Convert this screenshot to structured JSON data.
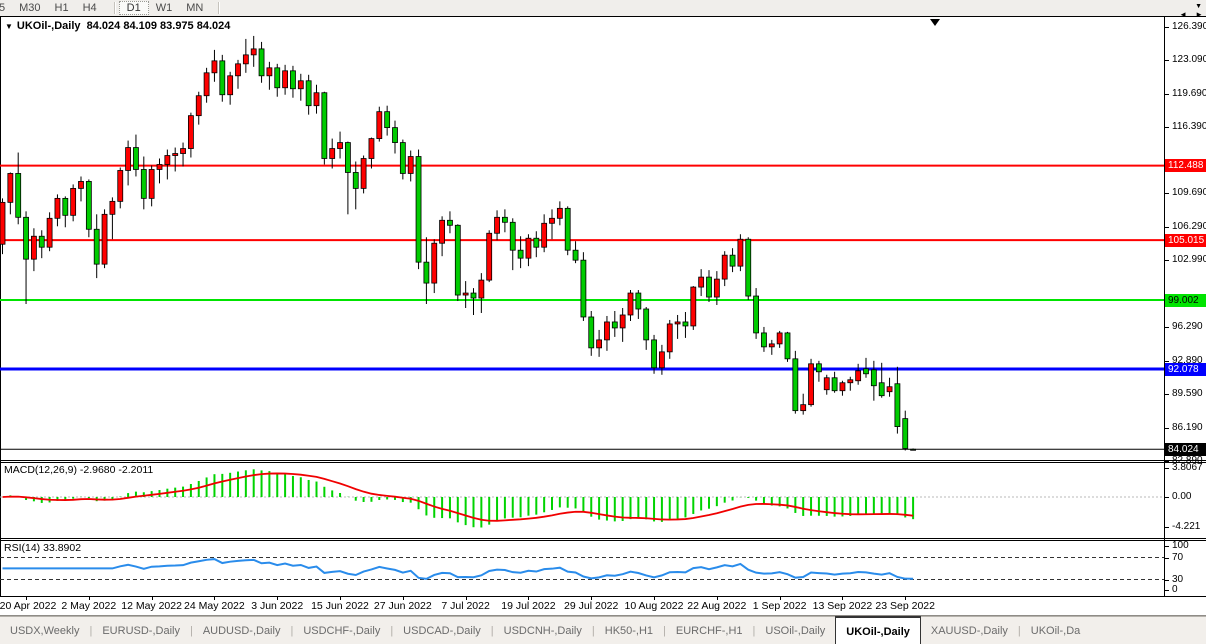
{
  "toolbar": {
    "timeframes": [
      "5",
      "M30",
      "H1",
      "H4",
      "D1",
      "W1",
      "MN"
    ],
    "active": "D1",
    "overflow_icon": "▼"
  },
  "chart": {
    "title": {
      "collapse_icon": "▼",
      "symbol": "UKOil-,Daily",
      "ohlc": "84.024 84.109 83.975 84.024"
    }
  },
  "macd_panel": {
    "label": "MACD(12,26,9)",
    "main_value": "-2.9680",
    "signal_value": "-2.2011",
    "axis": [
      "3.8067",
      "0.00",
      "-4.221"
    ]
  },
  "rsi_panel": {
    "label": "RSI(14)",
    "value": "33.8902",
    "axis": [
      "100",
      "70",
      "30",
      "0"
    ]
  },
  "tabs": {
    "items": [
      "USDX,Weekly",
      "EURUSD-,Daily",
      "AUDUSD-,Daily",
      "USDCHF-,Daily",
      "USDCAD-,Daily",
      "USDCNH-,Daily",
      "HK50-,H1",
      "EURCHF-,H1",
      "USOil-,Daily",
      "UKOil-,Daily",
      "XAUUSD-,Daily",
      "UKOil-,Da"
    ],
    "active": "UKOil-,Daily",
    "scroll_left_icon": "◄",
    "scroll_right_icon": "►"
  },
  "chart_data": {
    "type": "candlestick",
    "symbol": "UKOil-",
    "timeframe": "Daily",
    "title": "UKOil-,Daily",
    "current_ohlc": {
      "open": 84.024,
      "high": 84.109,
      "low": 83.975,
      "close": 84.024
    },
    "colors": {
      "bull_candle": "#fe0000",
      "bear_candle": "#00cc00",
      "wick": "#000000",
      "macd_histogram": "#00d300",
      "macd_signal": "#f00000",
      "rsi_line": "#2a8ceb",
      "level_red": "#ff0000",
      "level_green": "#00e400",
      "level_blue": "#0000ff",
      "price_line": "#000000"
    },
    "y_axis_ticks": [
      126.39,
      123.09,
      119.69,
      116.39,
      109.69,
      106.29,
      102.99,
      96.29,
      92.89,
      89.59,
      86.19,
      82.89
    ],
    "horizontal_levels": [
      {
        "price": 112.488,
        "color": "#ff0000",
        "width": 2,
        "badge_fg": "#ffffff"
      },
      {
        "price": 105.015,
        "color": "#ff0000",
        "width": 2,
        "badge_fg": "#ffffff"
      },
      {
        "price": 99.002,
        "color": "#00e400",
        "width": 2,
        "badge_fg": "#000000"
      },
      {
        "price": 92.078,
        "color": "#0000ff",
        "width": 3,
        "badge_fg": "#ffffff"
      },
      {
        "price": 84.024,
        "color": "#000000",
        "width": 1,
        "badge_fg": "#ffffff"
      }
    ],
    "x_axis_dates": [
      "20 Apr 2022",
      "2 May 2022",
      "12 May 2022",
      "24 May 2022",
      "3 Jun 2022",
      "15 Jun 2022",
      "27 Jun 2022",
      "7 Jul 2022",
      "19 Jul 2022",
      "29 Jul 2022",
      "10 Aug 2022",
      "22 Aug 2022",
      "1 Sep 2022",
      "13 Sep 2022",
      "23 Sep 2022"
    ],
    "candles_ohlc": [
      [
        104.6,
        109.2,
        103.6,
        108.8
      ],
      [
        108.8,
        111.8,
        107.6,
        111.7
      ],
      [
        111.7,
        113.8,
        106.6,
        107.3
      ],
      [
        107.3,
        107.9,
        98.6,
        103.1
      ],
      [
        103.1,
        106.2,
        101.9,
        105.4
      ],
      [
        105.4,
        106.0,
        103.2,
        104.3
      ],
      [
        104.3,
        107.8,
        103.9,
        107.2
      ],
      [
        107.2,
        109.6,
        106.4,
        109.2
      ],
      [
        109.2,
        109.4,
        106.3,
        107.5
      ],
      [
        107.5,
        110.6,
        106.9,
        110.2
      ],
      [
        110.2,
        111.4,
        108.9,
        110.9
      ],
      [
        110.9,
        111.1,
        105.3,
        106.1
      ],
      [
        106.1,
        107.6,
        101.2,
        102.6
      ],
      [
        102.6,
        108.1,
        102.2,
        107.6
      ],
      [
        107.6,
        109.3,
        105.1,
        108.9
      ],
      [
        108.9,
        112.3,
        108.2,
        112.0
      ],
      [
        112.0,
        115.0,
        110.5,
        114.3
      ],
      [
        114.3,
        115.6,
        111.4,
        112.1
      ],
      [
        112.1,
        113.4,
        108.1,
        109.2
      ],
      [
        109.2,
        112.5,
        108.4,
        112.1
      ],
      [
        112.1,
        113.2,
        110.7,
        112.6
      ],
      [
        112.6,
        114.1,
        111.1,
        113.5
      ],
      [
        113.5,
        114.3,
        111.9,
        113.7
      ],
      [
        113.7,
        114.8,
        112.4,
        114.2
      ],
      [
        114.2,
        117.8,
        113.3,
        117.5
      ],
      [
        117.5,
        119.9,
        116.6,
        119.5
      ],
      [
        119.5,
        122.3,
        118.8,
        121.8
      ],
      [
        121.8,
        124.1,
        120.9,
        123.0
      ],
      [
        123.0,
        123.6,
        118.9,
        119.6
      ],
      [
        119.6,
        121.9,
        118.6,
        121.5
      ],
      [
        121.5,
        123.1,
        120.2,
        122.7
      ],
      [
        122.7,
        125.2,
        121.8,
        123.6
      ],
      [
        123.6,
        125.5,
        122.4,
        124.2
      ],
      [
        124.2,
        124.9,
        120.8,
        121.5
      ],
      [
        121.5,
        122.9,
        120.1,
        122.3
      ],
      [
        122.3,
        122.7,
        119.4,
        120.3
      ],
      [
        120.3,
        122.6,
        119.6,
        122.0
      ],
      [
        122.0,
        122.5,
        119.3,
        120.2
      ],
      [
        120.2,
        121.7,
        119.0,
        121.0
      ],
      [
        121.0,
        121.6,
        117.6,
        118.5
      ],
      [
        118.5,
        120.6,
        117.7,
        119.8
      ],
      [
        119.8,
        119.9,
        112.6,
        113.2
      ],
      [
        113.2,
        115.2,
        112.2,
        114.2
      ],
      [
        114.2,
        115.9,
        113.2,
        114.8
      ],
      [
        114.8,
        114.9,
        107.6,
        111.8
      ],
      [
        111.8,
        112.9,
        108.1,
        110.2
      ],
      [
        110.2,
        113.5,
        109.7,
        113.2
      ],
      [
        113.2,
        115.3,
        112.2,
        115.2
      ],
      [
        115.2,
        118.4,
        114.9,
        117.9
      ],
      [
        117.9,
        118.5,
        115.5,
        116.3
      ],
      [
        116.3,
        117.0,
        113.7,
        114.8
      ],
      [
        114.8,
        115.1,
        111.1,
        111.7
      ],
      [
        111.7,
        114.0,
        110.9,
        113.4
      ],
      [
        113.4,
        114.1,
        102.1,
        102.8
      ],
      [
        102.8,
        105.3,
        98.6,
        100.7
      ],
      [
        100.7,
        105.1,
        99.7,
        104.7
      ],
      [
        104.7,
        107.4,
        103.4,
        107.0
      ],
      [
        107.0,
        107.9,
        105.7,
        106.5
      ],
      [
        106.5,
        106.6,
        98.9,
        99.5
      ],
      [
        99.5,
        100.9,
        98.2,
        99.7
      ],
      [
        99.7,
        100.2,
        97.5,
        99.2
      ],
      [
        99.2,
        101.7,
        97.7,
        101.0
      ],
      [
        101.0,
        106.0,
        100.8,
        105.7
      ],
      [
        105.7,
        108.0,
        105.0,
        107.3
      ],
      [
        107.3,
        108.1,
        105.8,
        106.8
      ],
      [
        106.8,
        107.2,
        102.0,
        104.0
      ],
      [
        104.0,
        105.4,
        102.2,
        103.2
      ],
      [
        103.2,
        105.6,
        102.4,
        105.2
      ],
      [
        105.2,
        105.9,
        103.3,
        104.3
      ],
      [
        104.3,
        107.6,
        103.8,
        106.7
      ],
      [
        106.7,
        108.1,
        105.1,
        107.2
      ],
      [
        107.2,
        108.9,
        106.5,
        108.2
      ],
      [
        108.2,
        108.4,
        103.5,
        104.0
      ],
      [
        104.0,
        104.9,
        102.7,
        103.0
      ],
      [
        103.0,
        103.8,
        96.9,
        97.3
      ],
      [
        97.3,
        97.9,
        93.4,
        94.2
      ],
      [
        94.2,
        96.0,
        93.3,
        95.0
      ],
      [
        95.0,
        97.4,
        93.9,
        96.8
      ],
      [
        96.8,
        97.9,
        95.3,
        96.2
      ],
      [
        96.2,
        98.2,
        94.8,
        97.5
      ],
      [
        97.5,
        100.0,
        96.9,
        99.7
      ],
      [
        99.7,
        100.0,
        97.1,
        98.1
      ],
      [
        98.1,
        98.3,
        94.0,
        95.0
      ],
      [
        95.0,
        95.5,
        91.6,
        92.2
      ],
      [
        92.2,
        94.5,
        91.5,
        93.8
      ],
      [
        93.8,
        97.0,
        93.1,
        96.6
      ],
      [
        96.6,
        97.5,
        95.1,
        96.8
      ],
      [
        96.8,
        97.8,
        95.2,
        96.4
      ],
      [
        96.4,
        100.4,
        96.0,
        100.3
      ],
      [
        100.3,
        102.1,
        99.4,
        101.3
      ],
      [
        101.3,
        102.0,
        98.8,
        99.3
      ],
      [
        99.3,
        101.9,
        98.5,
        101.1
      ],
      [
        101.1,
        103.9,
        100.4,
        103.5
      ],
      [
        103.5,
        104.2,
        101.8,
        102.4
      ],
      [
        102.4,
        105.6,
        101.9,
        105.1
      ],
      [
        105.1,
        105.3,
        99.0,
        99.4
      ],
      [
        99.4,
        100.2,
        95.1,
        95.7
      ],
      [
        95.7,
        96.3,
        93.8,
        94.3
      ],
      [
        94.3,
        95.0,
        93.5,
        94.6
      ],
      [
        94.6,
        95.9,
        94.2,
        95.7
      ],
      [
        95.7,
        95.8,
        92.8,
        93.1
      ],
      [
        93.1,
        93.9,
        87.6,
        87.9
      ],
      [
        87.9,
        89.6,
        87.5,
        88.5
      ],
      [
        88.5,
        93.1,
        88.3,
        92.6
      ],
      [
        92.6,
        92.9,
        90.8,
        91.8
      ],
      [
        90.0,
        91.5,
        89.5,
        91.2
      ],
      [
        91.2,
        91.8,
        89.7,
        89.9
      ],
      [
        89.9,
        90.9,
        89.4,
        90.7
      ],
      [
        90.7,
        91.3,
        89.9,
        91.0
      ],
      [
        90.9,
        92.6,
        90.5,
        91.9
      ],
      [
        92.1,
        93.2,
        91.2,
        91.6
      ],
      [
        92.0,
        92.9,
        88.9,
        90.4
      ],
      [
        90.7,
        92.7,
        89.2,
        89.4
      ],
      [
        89.8,
        91.2,
        89.3,
        90.3
      ],
      [
        90.6,
        92.3,
        85.6,
        86.3
      ],
      [
        87.1,
        87.9,
        83.9,
        84.1
      ],
      [
        84.024,
        84.109,
        83.975,
        84.024
      ]
    ],
    "indicators": {
      "macd": {
        "params": [
          12,
          26,
          9
        ],
        "displayed_main": -2.968,
        "displayed_signal": -2.2011,
        "scale_labels": [
          3.8067,
          0.0,
          -4.221
        ]
      },
      "rsi": {
        "period": 14,
        "displayed_value": 33.8902,
        "overbought": 70,
        "oversold": 30,
        "scale_labels": [
          100,
          70,
          30,
          0
        ]
      }
    }
  }
}
